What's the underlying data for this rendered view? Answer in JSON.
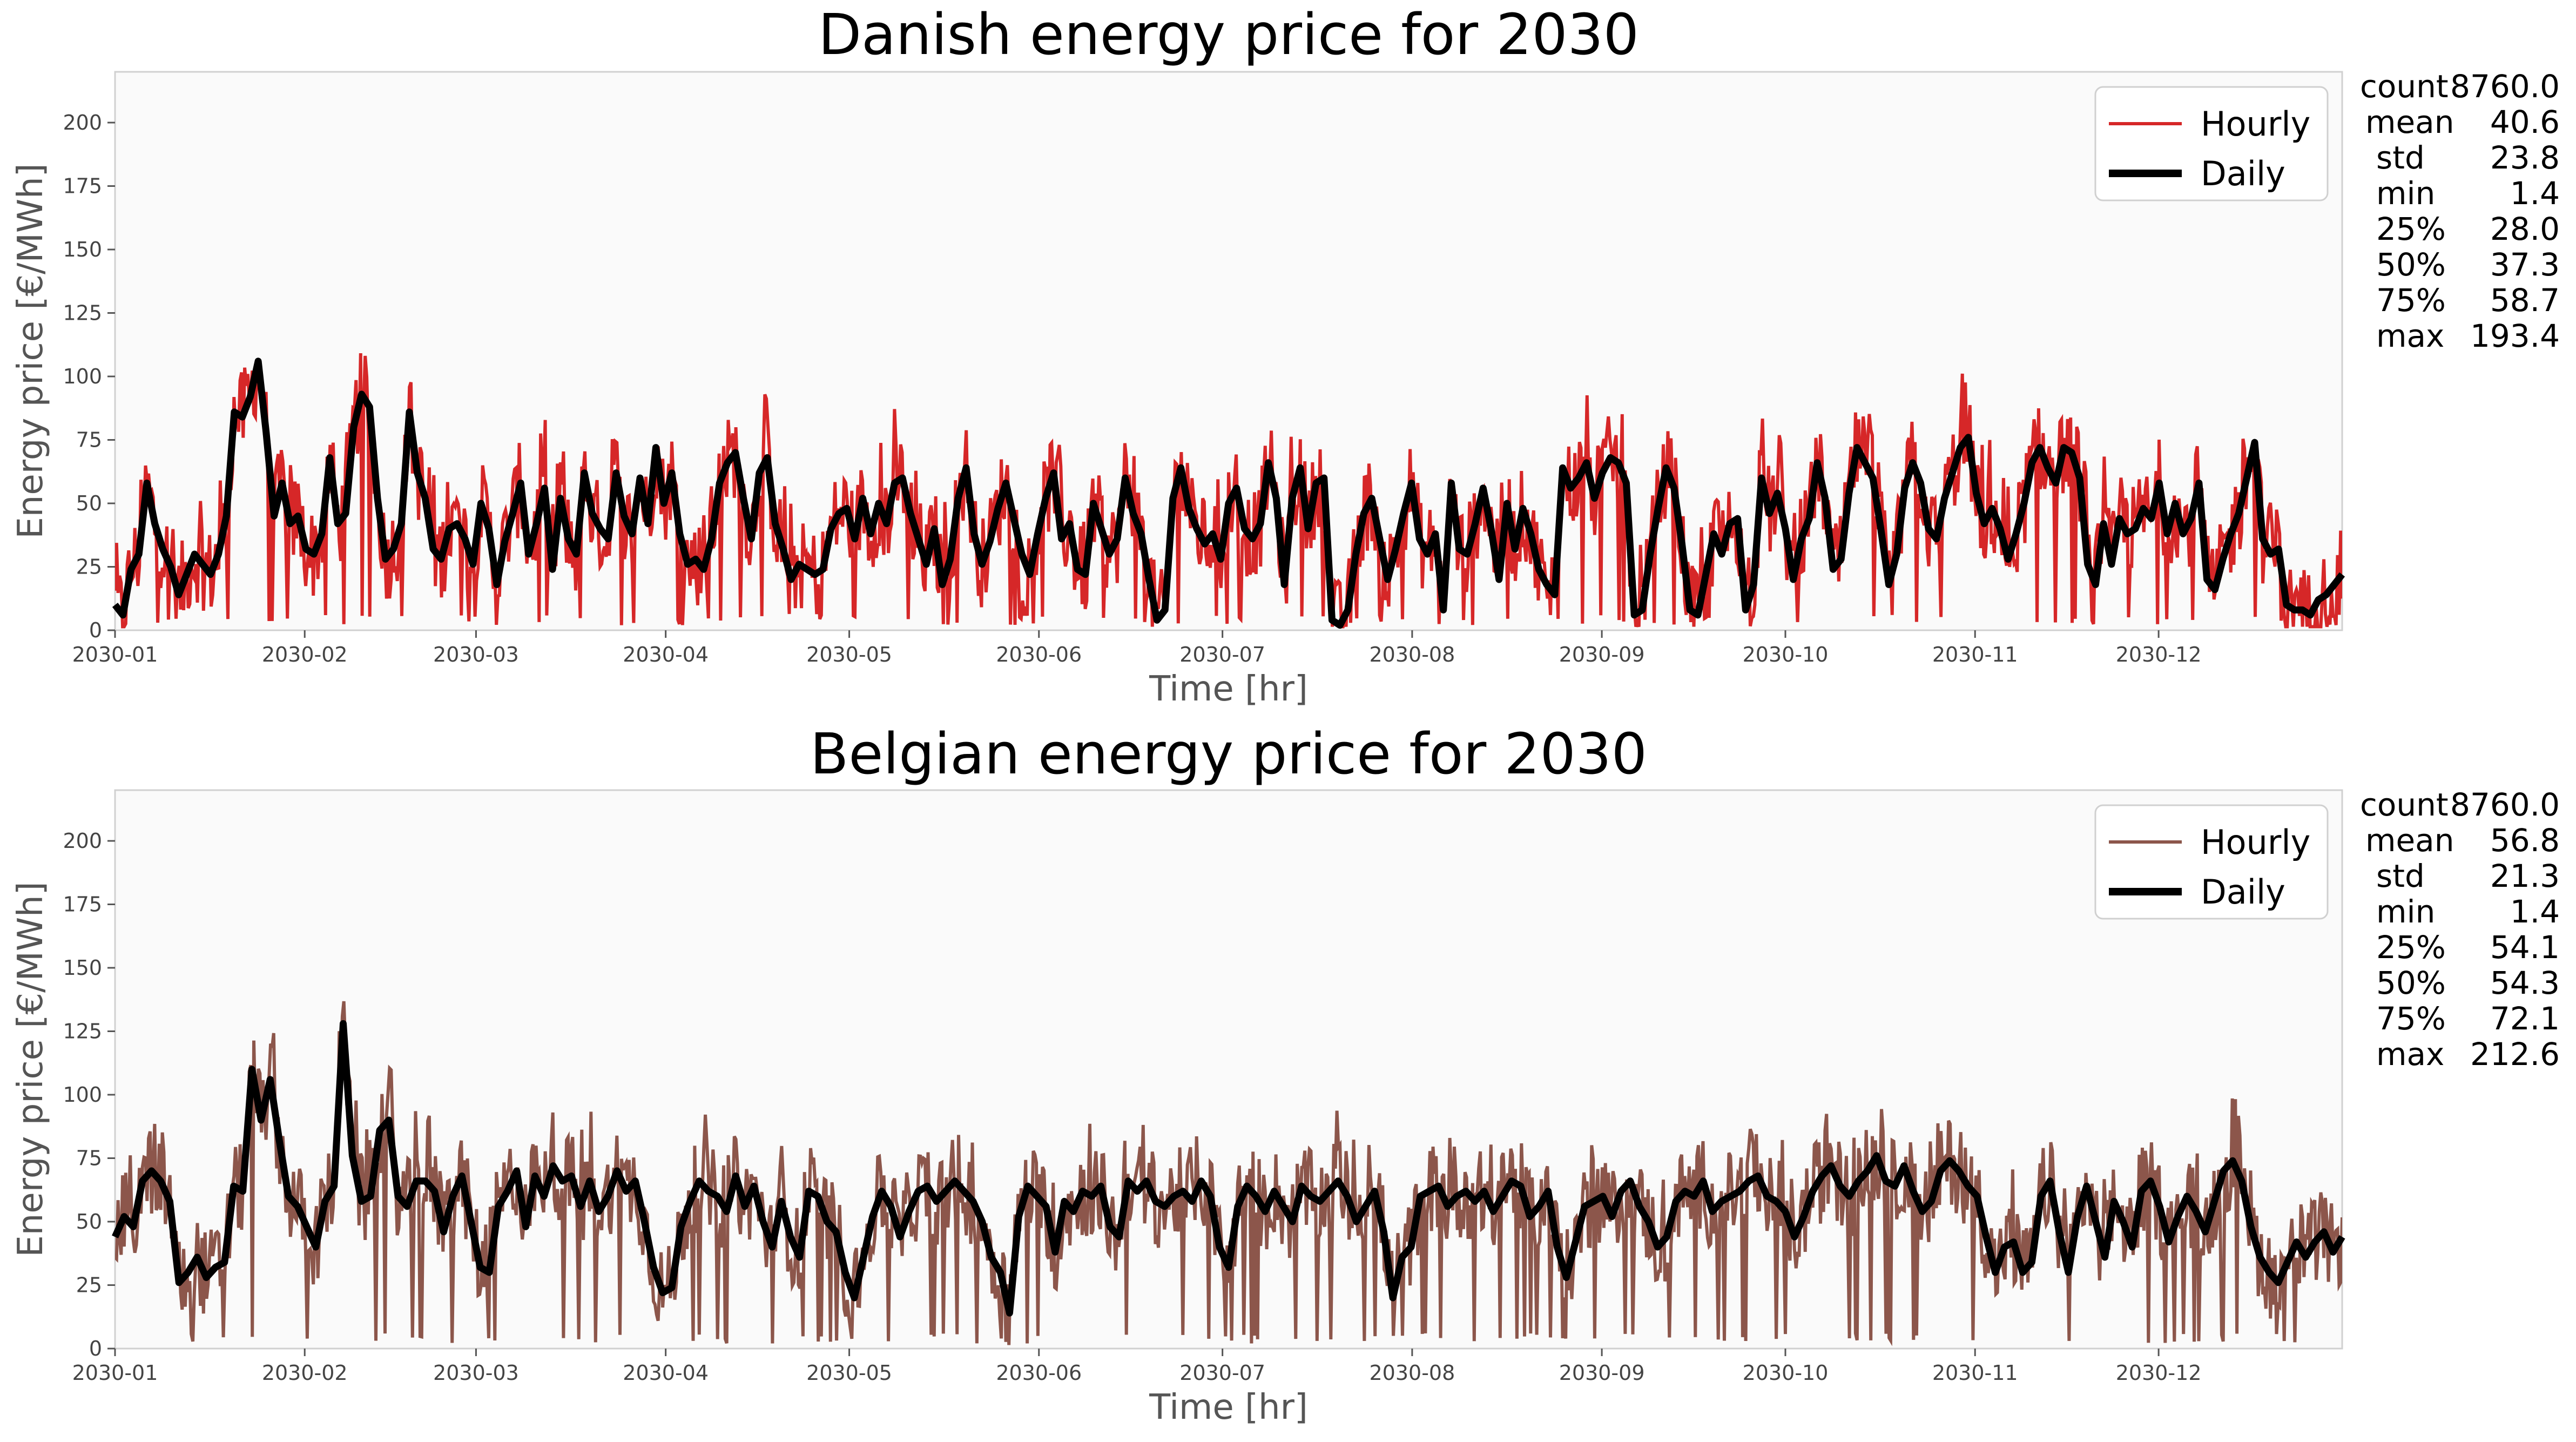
{
  "chart_data": [
    {
      "type": "line",
      "title": "Danish energy price for 2030",
      "xlabel": "Time [hr]",
      "ylabel": "Energy price [€/MWh]",
      "xlim": [
        "2030-01-01",
        "2030-12-31"
      ],
      "ylim": [
        0,
        220
      ],
      "yticks": [
        0,
        25,
        50,
        75,
        100,
        125,
        150,
        175,
        200
      ],
      "xtick_labels": [
        "2030-01",
        "2030-02",
        "2030-03",
        "2030-04",
        "2030-05",
        "2030-06",
        "2030-07",
        "2030-08",
        "2030-09",
        "2030-10",
        "2030-11",
        "2030-12"
      ],
      "grid": false,
      "legend": "top-right",
      "series": [
        {
          "name": "Hourly",
          "color": "#d62728",
          "role": "hourly",
          "low": 1.4,
          "high": 193.4
        },
        {
          "name": "Daily",
          "color": "#000000",
          "role": "daily",
          "values_every_3_days": [
            10,
            6,
            24,
            30,
            58,
            42,
            32,
            25,
            14,
            22,
            30,
            26,
            22,
            30,
            45,
            86,
            84,
            92,
            106,
            78,
            45,
            58,
            42,
            45,
            32,
            30,
            38,
            68,
            42,
            46,
            80,
            93,
            88,
            52,
            28,
            32,
            42,
            86,
            62,
            52,
            32,
            28,
            40,
            42,
            36,
            26,
            50,
            40,
            18,
            35,
            46,
            58,
            30,
            42,
            56,
            24,
            52,
            36,
            30,
            62,
            46,
            40,
            36,
            62,
            45,
            38,
            60,
            42,
            72,
            50,
            62,
            38,
            26,
            28,
            24,
            36,
            58,
            66,
            70,
            52,
            36,
            62,
            68,
            42,
            32,
            20,
            26,
            24,
            22,
            24,
            40,
            46,
            48,
            36,
            52,
            38,
            50,
            42,
            58,
            60,
            46,
            36,
            26,
            40,
            18,
            28,
            52,
            64,
            38,
            26,
            35,
            48,
            58,
            44,
            30,
            22,
            38,
            52,
            62,
            36,
            42,
            24,
            22,
            50,
            40,
            30,
            36,
            60,
            46,
            38,
            20,
            4,
            8,
            52,
            64,
            48,
            40,
            34,
            38,
            28,
            50,
            56,
            40,
            36,
            42,
            66,
            52,
            18,
            52,
            64,
            40,
            58,
            60,
            4,
            2,
            8,
            30,
            46,
            52,
            36,
            20,
            32,
            46,
            58,
            36,
            30,
            38,
            8,
            58,
            32,
            30,
            42,
            56,
            40,
            20,
            50,
            32,
            48,
            38,
            24,
            18,
            14,
            64,
            56,
            60,
            66,
            52,
            62,
            68,
            66,
            58,
            6,
            8,
            30,
            48,
            64,
            56,
            34,
            8,
            6,
            22,
            38,
            30,
            42,
            44,
            8,
            18,
            60,
            46,
            54,
            40,
            20,
            36,
            44,
            66,
            52,
            24,
            28,
            54,
            72,
            66,
            60,
            40,
            18,
            30,
            56,
            66,
            58,
            40,
            36,
            52,
            62,
            72,
            76,
            54,
            42,
            48,
            40,
            28,
            38,
            50,
            66,
            72,
            64,
            58,
            72,
            70,
            60,
            26,
            18,
            42,
            26,
            44,
            38,
            40,
            48,
            44,
            58,
            38,
            50,
            38,
            44,
            58,
            20,
            16,
            28,
            38,
            46,
            60,
            74,
            36,
            30,
            32,
            10,
            8,
            8,
            6,
            12,
            14,
            18,
            22
          ],
          "values_partial_note": ""
        }
      ],
      "stats": {
        "count": "8760.0",
        "mean": "40.6",
        "std": "23.8",
        "min": "1.4",
        "25%": "28.0",
        "50%": "37.3",
        "75%": "58.7",
        "max": "193.4"
      }
    },
    {
      "type": "line",
      "title": "Belgian energy price for 2030",
      "xlabel": "Time [hr]",
      "ylabel": "Energy price [€/MWh]",
      "xlim": [
        "2030-01-01",
        "2030-12-31"
      ],
      "ylim": [
        0,
        220
      ],
      "yticks": [
        0,
        25,
        50,
        75,
        100,
        125,
        150,
        175,
        200
      ],
      "xtick_labels": [
        "2030-01",
        "2030-02",
        "2030-03",
        "2030-04",
        "2030-05",
        "2030-06",
        "2030-07",
        "2030-08",
        "2030-09",
        "2030-10",
        "2030-11",
        "2030-12"
      ],
      "grid": false,
      "legend": "top-right",
      "series": [
        {
          "name": "Hourly",
          "color": "#8c564b",
          "role": "hourly",
          "low": 1.4,
          "high": 212.6
        },
        {
          "name": "Daily",
          "color": "#000000",
          "role": "daily",
          "values_every_3_days": [
            44,
            52,
            48,
            66,
            70,
            66,
            58,
            26,
            30,
            36,
            28,
            32,
            34,
            64,
            62,
            110,
            90,
            106,
            82,
            60,
            56,
            48,
            40,
            58,
            64,
            128,
            76,
            58,
            60,
            86,
            90,
            60,
            56,
            66,
            66,
            62,
            46,
            60,
            68,
            50,
            32,
            30,
            56,
            62,
            70,
            48,
            68,
            60,
            72,
            66,
            68,
            56,
            66,
            54,
            60,
            70,
            62,
            66,
            50,
            32,
            22,
            24,
            48,
            58,
            66,
            62,
            60,
            54,
            68,
            56,
            64,
            50,
            40,
            58,
            44,
            36,
            62,
            60,
            50,
            46,
            30,
            20,
            36,
            52,
            62,
            56,
            44,
            54,
            62,
            64,
            58,
            62,
            66,
            62,
            58,
            50,
            36,
            30,
            14,
            52,
            64,
            60,
            56,
            38,
            58,
            54,
            62,
            60,
            64,
            48,
            44,
            66,
            62,
            66,
            58,
            56,
            60,
            62,
            58,
            66,
            60,
            40,
            32,
            56,
            64,
            60,
            54,
            62,
            56,
            50,
            64,
            60,
            58,
            62,
            66,
            60,
            50,
            56,
            62,
            46,
            20,
            36,
            40,
            60,
            62,
            64,
            56,
            60,
            62,
            58,
            62,
            54,
            60,
            66,
            64,
            52,
            56,
            62,
            40,
            28,
            42,
            56,
            58,
            60,
            52,
            62,
            66,
            56,
            50,
            40,
            44,
            58,
            62,
            60,
            66,
            54,
            58,
            60,
            62,
            66,
            68,
            60,
            58,
            54,
            44,
            52,
            62,
            68,
            72,
            64,
            60,
            66,
            70,
            76,
            66,
            64,
            72,
            62,
            54,
            58,
            70,
            74,
            70,
            64,
            60,
            44,
            30,
            40,
            42,
            30,
            34,
            60,
            66,
            46,
            30,
            52,
            64,
            50,
            36,
            58,
            50,
            40,
            62,
            66,
            56,
            42,
            52,
            60,
            54,
            46,
            58,
            70,
            74,
            66,
            48,
            36,
            30,
            26,
            34,
            42,
            36,
            42,
            46,
            38,
            44
          ],
          "values_partial_note": ""
        }
      ],
      "stats": {
        "count": "8760.0",
        "mean": "56.8",
        "std": "21.3",
        "min": "1.4",
        "25%": "54.1",
        "50%": "54.3",
        "75%": "72.1",
        "max": "212.6"
      }
    }
  ]
}
